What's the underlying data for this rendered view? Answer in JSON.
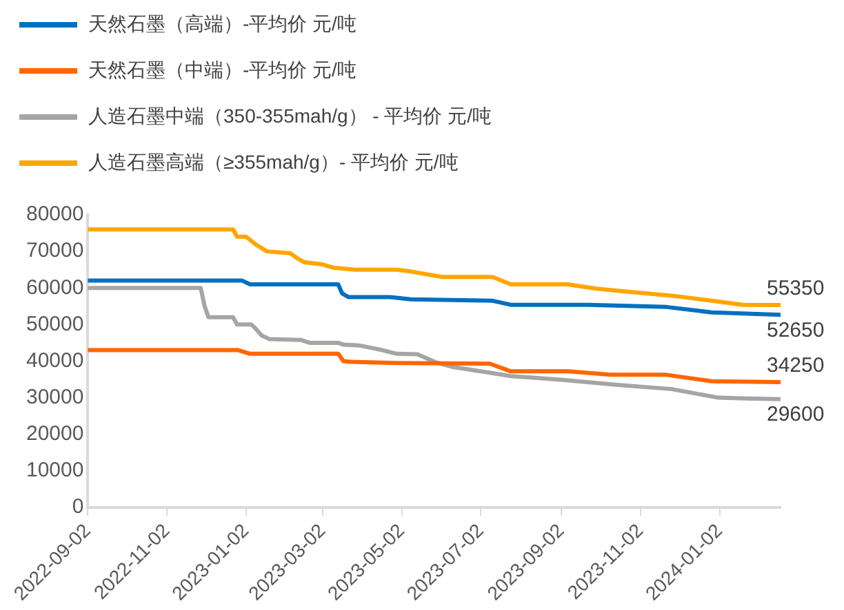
{
  "chart_data": {
    "type": "line",
    "legend": "top left",
    "grid": false,
    "marker": "none",
    "line_style": "solid",
    "xlim": [
      "2022-09-02",
      "2024-02-18"
    ],
    "xticks": [
      "2022-09-02",
      "2022-11-02",
      "2023-01-02",
      "2023-03-02",
      "2023-05-02",
      "2023-07-02",
      "2023-09-02",
      "2023-11-02",
      "2024-01-02"
    ],
    "ylim": [
      0,
      80000
    ],
    "yticks": [
      0,
      10000,
      20000,
      30000,
      40000,
      50000,
      60000,
      70000,
      80000
    ],
    "series": [
      {
        "name": "天然石墨（高端）-平均价 元/吨",
        "color": "#0070c0",
        "x": [
          "2022-09-02",
          "2022-12-30",
          "2023-01-05",
          "2023-03-14",
          "2023-03-17",
          "2023-03-22",
          "2023-04-23",
          "2023-05-09",
          "2023-07-11",
          "2023-07-25",
          "2023-09-22",
          "2023-11-22",
          "2023-12-27",
          "2024-02-18"
        ],
        "values": [
          62000,
          62000,
          61000,
          61000,
          58500,
          57500,
          57500,
          56900,
          56500,
          55400,
          55400,
          54800,
          53300,
          52650
        ],
        "value_labels": [
          null,
          null,
          null,
          null,
          null,
          null,
          null,
          null,
          null,
          null,
          null,
          null,
          null,
          "52650"
        ]
      },
      {
        "name": "天然石墨（中端）-平均价 元/吨",
        "color": "#ff6600",
        "x": [
          "2022-09-02",
          "2022-12-27",
          "2023-01-05",
          "2023-03-14",
          "2023-03-18",
          "2023-03-23",
          "2023-04-28",
          "2023-07-09",
          "2023-07-25",
          "2023-09-07",
          "2023-10-10",
          "2023-11-21",
          "2023-12-27",
          "2024-02-18"
        ],
        "values": [
          43000,
          43000,
          42000,
          42000,
          40000,
          39800,
          39500,
          39300,
          37200,
          37200,
          36300,
          36300,
          34500,
          34250
        ],
        "value_labels": [
          null,
          null,
          null,
          null,
          null,
          null,
          null,
          null,
          null,
          null,
          null,
          null,
          null,
          "34250"
        ]
      },
      {
        "name": "人造石墨中端（350-355mah/g） - 平均价 元/吨",
        "color": "#a5a5a5",
        "x": [
          "2022-09-02",
          "2022-11-28",
          "2022-12-01",
          "2022-12-04",
          "2022-12-23",
          "2022-12-26",
          "2023-01-06",
          "2023-01-09",
          "2023-01-14",
          "2023-01-20",
          "2023-02-13",
          "2023-02-20",
          "2023-03-14",
          "2023-03-18",
          "2023-03-30",
          "2023-04-17",
          "2023-04-28",
          "2023-05-14",
          "2023-05-28",
          "2023-06-10",
          "2023-07-06",
          "2023-07-25",
          "2023-09-03",
          "2023-10-15",
          "2023-11-26",
          "2024-01-01",
          "2024-01-22",
          "2024-02-18"
        ],
        "values": [
          60000,
          60000,
          55000,
          52000,
          52000,
          50000,
          50000,
          49000,
          47000,
          46000,
          45800,
          45000,
          45000,
          44500,
          44300,
          43000,
          42000,
          41900,
          39700,
          38400,
          37000,
          35900,
          34850,
          33500,
          32350,
          30000,
          29800,
          29600
        ],
        "value_labels": [
          null,
          null,
          null,
          null,
          null,
          null,
          null,
          null,
          null,
          null,
          null,
          null,
          null,
          null,
          null,
          null,
          null,
          null,
          null,
          null,
          null,
          null,
          null,
          null,
          null,
          null,
          null,
          "29600"
        ]
      },
      {
        "name": "人造石墨高端（≥355mah/g）- 平均价 元/吨",
        "color": "#ffa500",
        "x": [
          "2022-09-02",
          "2022-12-23",
          "2022-12-26",
          "2023-01-02",
          "2023-01-09",
          "2023-01-18",
          "2023-02-05",
          "2023-02-11",
          "2023-02-16",
          "2023-03-01",
          "2023-03-11",
          "2023-03-27",
          "2023-04-28",
          "2023-05-09",
          "2023-06-02",
          "2023-07-11",
          "2023-07-25",
          "2023-09-07",
          "2023-09-29",
          "2023-10-25",
          "2023-11-26",
          "2023-12-27",
          "2024-01-20",
          "2024-02-18"
        ],
        "values": [
          76000,
          76000,
          74000,
          74000,
          72000,
          70000,
          69500,
          68000,
          67000,
          66500,
          65500,
          65000,
          65000,
          64500,
          63000,
          63000,
          61000,
          61000,
          59800,
          58900,
          57900,
          56500,
          55400,
          55350
        ],
        "value_labels": [
          null,
          null,
          null,
          null,
          null,
          null,
          null,
          null,
          null,
          null,
          null,
          null,
          null,
          null,
          null,
          null,
          null,
          null,
          null,
          null,
          null,
          null,
          null,
          "55350"
        ]
      }
    ]
  }
}
